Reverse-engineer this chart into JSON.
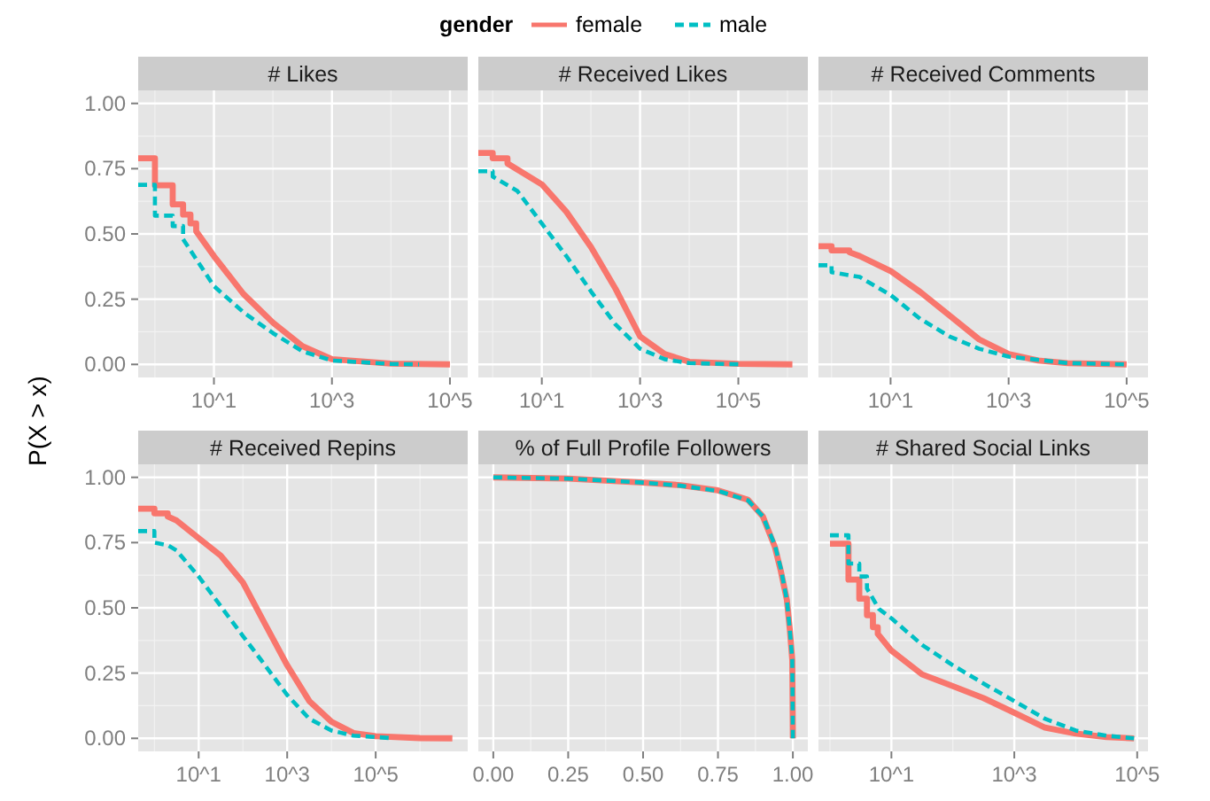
{
  "chart_data": [
    {
      "type": "line",
      "title": "# Likes",
      "ylabel": "P(X > x)",
      "legend_title": "gender",
      "legend": "top",
      "log": "x",
      "grid": true,
      "xlim": [
        0.52,
        200000
      ],
      "xticks": [
        {
          "value": 10,
          "label": "10^1"
        },
        {
          "value": 1000,
          "label": "10^3"
        },
        {
          "value": 100000,
          "label": "10^5"
        }
      ],
      "ylim": [
        -0.05,
        1.05
      ],
      "yticks": [
        {
          "value": 0,
          "label": "0.00"
        },
        {
          "value": 0.25,
          "label": "0.25"
        },
        {
          "value": 0.5,
          "label": "0.50"
        },
        {
          "value": 0.75,
          "label": "0.75"
        },
        {
          "value": 1,
          "label": "1.00"
        }
      ],
      "series": [
        {
          "name": "female",
          "color": "#f8766d",
          "line_style": "solid",
          "x": [
            0.52,
            1,
            1,
            2,
            2,
            3,
            3,
            4,
            4,
            5,
            5,
            10,
            31.6,
            100,
            316,
            1000,
            10000,
            100000
          ],
          "values": [
            0.79,
            0.79,
            0.686,
            0.686,
            0.613,
            0.613,
            0.574,
            0.574,
            0.54,
            0.54,
            0.51,
            0.415,
            0.27,
            0.16,
            0.07,
            0.02,
            0.003,
            0
          ]
        },
        {
          "name": "male",
          "color": "#00bfc4",
          "line_style": "dashed",
          "x": [
            0.52,
            1,
            1,
            2,
            2,
            3,
            3,
            10,
            31.6,
            100,
            316,
            1000,
            10000,
            30000
          ],
          "values": [
            0.688,
            0.688,
            0.57,
            0.57,
            0.53,
            0.53,
            0.48,
            0.3,
            0.2,
            0.12,
            0.05,
            0.015,
            0.002,
            0
          ]
        }
      ]
    },
    {
      "type": "line",
      "title": "# Received Likes",
      "log": "x",
      "grid": true,
      "tick_labels": "x",
      "xlim": [
        0.51,
        2600000
      ],
      "xticks": [
        {
          "value": 10,
          "label": "10^1"
        },
        {
          "value": 1000,
          "label": "10^3"
        },
        {
          "value": 100000,
          "label": "10^5"
        }
      ],
      "ylim": [
        -0.05,
        1.05
      ],
      "yticks": [
        0,
        0.25,
        0.5,
        0.75,
        1
      ],
      "series": [
        {
          "color": "#f8766d",
          "line_style": "solid",
          "x": [
            0.51,
            1,
            1,
            2,
            2,
            10,
            31.6,
            100,
            316,
            1000,
            3160,
            10000,
            100000,
            1260000
          ],
          "values": [
            0.81,
            0.81,
            0.79,
            0.79,
            0.77,
            0.69,
            0.585,
            0.45,
            0.29,
            0.107,
            0.04,
            0.01,
            0.002,
            0
          ]
        },
        {
          "color": "#00bfc4",
          "line_style": "dashed",
          "x": [
            0.51,
            1,
            1,
            3.16,
            10,
            31.6,
            100,
            316,
            1000,
            3160,
            10000,
            126000
          ],
          "values": [
            0.74,
            0.74,
            0.72,
            0.665,
            0.54,
            0.415,
            0.28,
            0.153,
            0.06,
            0.02,
            0.005,
            0
          ]
        }
      ]
    },
    {
      "type": "line",
      "title": "# Received Comments",
      "log": "x",
      "grid": true,
      "tick_labels": "x",
      "xlim": [
        0.6,
        230000
      ],
      "xticks": [
        {
          "value": 10,
          "label": "10^1"
        },
        {
          "value": 1000,
          "label": "10^3"
        },
        {
          "value": 100000,
          "label": "10^5"
        }
      ],
      "ylim": [
        -0.05,
        1.05
      ],
      "yticks": [
        0,
        0.25,
        0.5,
        0.75,
        1
      ],
      "series": [
        {
          "color": "#f8766d",
          "line_style": "solid",
          "x": [
            0.6,
            1,
            1,
            2,
            2,
            3,
            10,
            31.6,
            100,
            316,
            1000,
            3160,
            10000,
            100000
          ],
          "values": [
            0.453,
            0.453,
            0.437,
            0.437,
            0.43,
            0.415,
            0.358,
            0.278,
            0.187,
            0.096,
            0.04,
            0.015,
            0.005,
            0
          ]
        },
        {
          "color": "#00bfc4",
          "line_style": "dashed",
          "x": [
            0.6,
            1,
            1,
            3,
            10,
            31.6,
            100,
            316,
            1000,
            10000,
            100000
          ],
          "values": [
            0.38,
            0.38,
            0.353,
            0.335,
            0.266,
            0.175,
            0.107,
            0.06,
            0.03,
            0.005,
            0
          ]
        }
      ]
    },
    {
      "type": "line",
      "title": "# Received Repins",
      "log": "x",
      "grid": true,
      "xlim": [
        0.43,
        12000000
      ],
      "xticks": [
        {
          "value": 10,
          "label": "10^1"
        },
        {
          "value": 1000,
          "label": "10^3"
        },
        {
          "value": 100000,
          "label": "10^5"
        }
      ],
      "ylim": [
        -0.05,
        1.05
      ],
      "yticks": [
        {
          "value": 0,
          "label": "0.00"
        },
        {
          "value": 0.25,
          "label": "0.25"
        },
        {
          "value": 0.5,
          "label": "0.50"
        },
        {
          "value": 0.75,
          "label": "0.75"
        },
        {
          "value": 1,
          "label": "1.00"
        }
      ],
      "series": [
        {
          "color": "#f8766d",
          "line_style": "solid",
          "x": [
            0.43,
            1,
            1,
            2,
            2,
            3.16,
            10,
            31.6,
            100,
            316,
            1000,
            3160,
            10000,
            31600,
            100000,
            1000000,
            5400000
          ],
          "values": [
            0.88,
            0.88,
            0.862,
            0.862,
            0.85,
            0.835,
            0.767,
            0.7,
            0.597,
            0.438,
            0.28,
            0.143,
            0.064,
            0.02,
            0.008,
            0.001,
            0
          ]
        },
        {
          "color": "#00bfc4",
          "line_style": "dashed",
          "x": [
            0.43,
            1,
            1,
            2,
            3.16,
            10,
            31.6,
            100,
            316,
            1000,
            3160,
            10000,
            31600,
            100000,
            250000
          ],
          "values": [
            0.794,
            0.794,
            0.75,
            0.74,
            0.72,
            0.62,
            0.506,
            0.392,
            0.28,
            0.166,
            0.075,
            0.03,
            0.01,
            0.005,
            0
          ]
        }
      ]
    },
    {
      "type": "line",
      "title": "% of Full Profile Followers",
      "grid": true,
      "tick_labels": "x",
      "xlim": [
        -0.05,
        1.05
      ],
      "xticks": [
        {
          "value": 0,
          "label": "0.00"
        },
        {
          "value": 0.25,
          "label": "0.25"
        },
        {
          "value": 0.5,
          "label": "0.50"
        },
        {
          "value": 0.75,
          "label": "0.75"
        },
        {
          "value": 1,
          "label": "1.00"
        }
      ],
      "ylim": [
        -0.05,
        1.05
      ],
      "yticks": [
        0,
        0.25,
        0.5,
        0.75,
        1
      ],
      "series": [
        {
          "color": "#f8766d",
          "line_style": "solid",
          "x": [
            0,
            0.25,
            0.5,
            0.625,
            0.75,
            0.85,
            0.9,
            0.94,
            0.96,
            0.98,
            0.99,
            0.998,
            1
          ],
          "values": [
            1,
            0.995,
            0.98,
            0.97,
            0.95,
            0.914,
            0.85,
            0.733,
            0.64,
            0.53,
            0.415,
            0.3,
            0
          ]
        },
        {
          "color": "#00bfc4",
          "line_style": "dashed",
          "x": [
            0,
            0.25,
            0.5,
            0.625,
            0.75,
            0.85,
            0.9,
            0.94,
            0.96,
            0.98,
            0.99,
            0.998,
            1
          ],
          "values": [
            1,
            0.995,
            0.98,
            0.968,
            0.948,
            0.912,
            0.85,
            0.74,
            0.65,
            0.53,
            0.415,
            0.3,
            0
          ]
        }
      ]
    },
    {
      "type": "line",
      "title": "# Shared Social Links",
      "log": "x",
      "grid": true,
      "tick_labels": "x",
      "xlim": [
        0.65,
        150000
      ],
      "xticks": [
        {
          "value": 10,
          "label": "10^1"
        },
        {
          "value": 1000,
          "label": "10^3"
        },
        {
          "value": 100000,
          "label": "10^5"
        }
      ],
      "ylim": [
        -0.05,
        1.05
      ],
      "yticks": [
        0,
        0.25,
        0.5,
        0.75,
        1
      ],
      "series": [
        {
          "color": "#f8766d",
          "line_style": "solid",
          "x": [
            1,
            2,
            2,
            3,
            3,
            4,
            4,
            5,
            5,
            6,
            6,
            10,
            31.6,
            100,
            316,
            1000,
            3160,
            10000,
            31600,
            89000
          ],
          "values": [
            0.746,
            0.746,
            0.608,
            0.608,
            0.535,
            0.535,
            0.472,
            0.472,
            0.426,
            0.426,
            0.4,
            0.336,
            0.245,
            0.2,
            0.154,
            0.098,
            0.041,
            0.018,
            0.005,
            0
          ]
        },
        {
          "color": "#00bfc4",
          "line_style": "dashed",
          "x": [
            1,
            2,
            2,
            3,
            3,
            4,
            4,
            6.3,
            10,
            31.6,
            100,
            316,
            1000,
            3160,
            10000,
            31600,
            89000
          ],
          "values": [
            0.778,
            0.778,
            0.67,
            0.67,
            0.62,
            0.62,
            0.574,
            0.495,
            0.46,
            0.358,
            0.28,
            0.21,
            0.143,
            0.075,
            0.03,
            0.01,
            0
          ]
        }
      ]
    }
  ]
}
